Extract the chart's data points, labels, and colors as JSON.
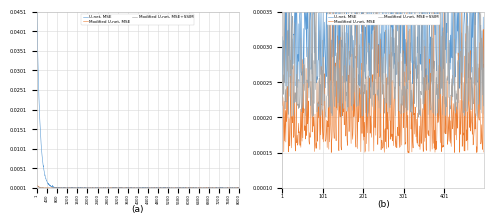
{
  "legend_labels": [
    "U-net, MSE",
    "Modified U-net, MSE",
    "Modified U-net, MSE+SSIM"
  ],
  "colors": [
    "#5b9bd5",
    "#ed7d31",
    "#a5a5a5"
  ],
  "total_epochs": 8000,
  "last_epochs": 500,
  "subplot_a_label": "(a)",
  "subplot_b_label": "(b)",
  "ylim_a": [
    0.0001,
    0.0451
  ],
  "ylim_b": [
    0.0001,
    0.00035
  ],
  "yticks_a": [
    0.0001,
    0.0051,
    0.0101,
    0.0151,
    0.0201,
    0.0251,
    0.0301,
    0.0351,
    0.0401,
    0.0451
  ],
  "yticks_b": [
    0.0001,
    0.00015,
    0.0002,
    0.00025,
    0.0003,
    0.00035
  ],
  "xticks_b": [
    1,
    101,
    201,
    301,
    401,
    501
  ],
  "background_color": "#ffffff",
  "grid_color": "#d8d8d8",
  "legend_ncol_a": 2,
  "legend_ncol_b": 2
}
